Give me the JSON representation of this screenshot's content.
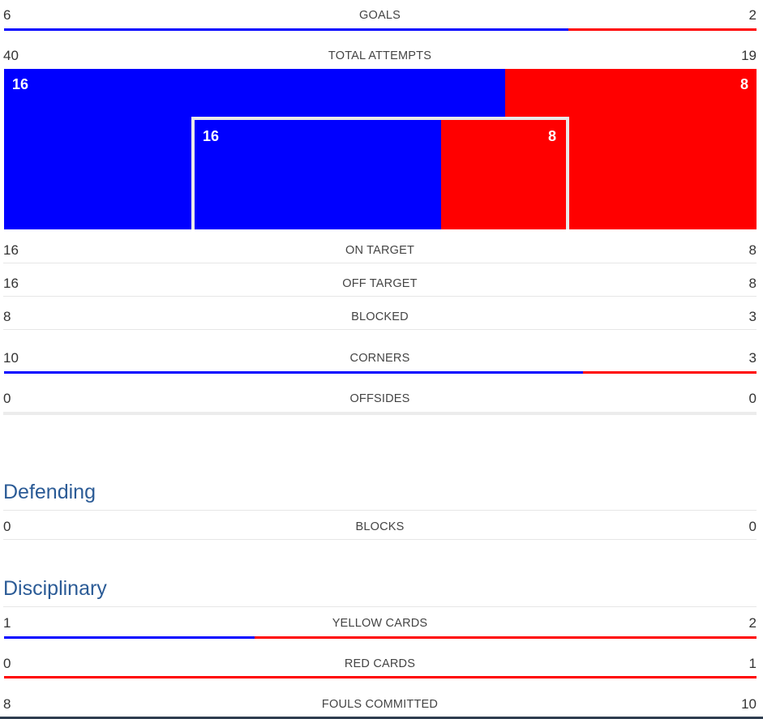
{
  "colors": {
    "home": "#0000ff",
    "away": "#ff0000",
    "section_title": "#2b5b96"
  },
  "goals": {
    "label": "GOALS",
    "home": "6",
    "away": "2",
    "home_share": 0.75
  },
  "total_attempts": {
    "label": "TOTAL ATTEMPTS",
    "home": "40",
    "away": "19"
  },
  "attempts_graphic": {
    "outer_home": "16",
    "outer_away": "8",
    "inner_home": "16",
    "inner_away": "8"
  },
  "on_target": {
    "label": "ON TARGET",
    "home": "16",
    "away": "8"
  },
  "off_target": {
    "label": "OFF TARGET",
    "home": "16",
    "away": "8"
  },
  "blocked": {
    "label": "BLOCKED",
    "home": "8",
    "away": "3"
  },
  "corners": {
    "label": "CORNERS",
    "home": "10",
    "away": "3",
    "home_share": 0.769
  },
  "offsides": {
    "label": "OFFSIDES",
    "home": "0",
    "away": "0"
  },
  "defending": {
    "title": "Defending",
    "blocks": {
      "label": "BLOCKS",
      "home": "0",
      "away": "0"
    }
  },
  "disciplinary": {
    "title": "Disciplinary",
    "yellow_cards": {
      "label": "YELLOW CARDS",
      "home": "1",
      "away": "2",
      "home_share": 0.333
    },
    "red_cards": {
      "label": "RED CARDS",
      "home": "0",
      "away": "1",
      "home_share": 0
    },
    "fouls_committed": {
      "label": "FOULS COMMITTED",
      "home": "8",
      "away": "10"
    }
  }
}
